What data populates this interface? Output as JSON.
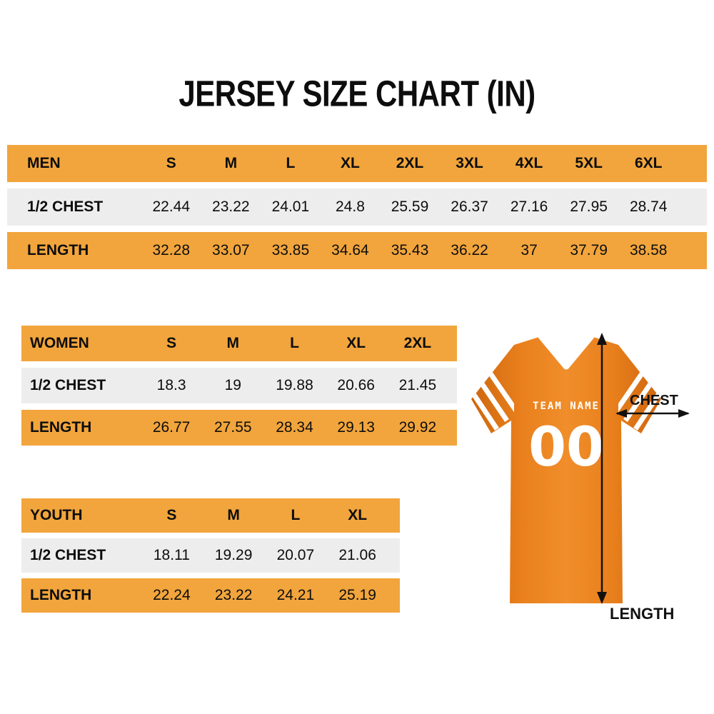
{
  "title": "JERSEY SIZE CHART (IN)",
  "colors": {
    "header_row": "#F2A53C",
    "alt_row": "#EDEDED",
    "jersey": "#E8831F",
    "text": "#0D0D0D"
  },
  "tables": {
    "men": {
      "header": [
        "MEN",
        "S",
        "M",
        "L",
        "XL",
        "2XL",
        "3XL",
        "4XL",
        "5XL",
        "6XL"
      ],
      "rows": [
        {
          "label": "1/2 CHEST",
          "values": [
            "22.44",
            "23.22",
            "24.01",
            "24.8",
            "25.59",
            "26.37",
            "27.16",
            "27.95",
            "28.74"
          ]
        },
        {
          "label": "LENGTH",
          "values": [
            "32.28",
            "33.07",
            "33.85",
            "34.64",
            "35.43",
            "36.22",
            "37",
            "37.79",
            "38.58"
          ]
        }
      ]
    },
    "women": {
      "header": [
        "WOMEN",
        "S",
        "M",
        "L",
        "XL",
        "2XL"
      ],
      "rows": [
        {
          "label": "1/2 CHEST",
          "values": [
            "18.3",
            "19",
            "19.88",
            "20.66",
            "21.45"
          ]
        },
        {
          "label": "LENGTH",
          "values": [
            "26.77",
            "27.55",
            "28.34",
            "29.13",
            "29.92"
          ]
        }
      ]
    },
    "youth": {
      "header": [
        "YOUTH",
        "S",
        "M",
        "L",
        "XL"
      ],
      "rows": [
        {
          "label": "1/2 CHEST",
          "values": [
            "18.11",
            "19.29",
            "20.07",
            "21.06"
          ]
        },
        {
          "label": "LENGTH",
          "values": [
            "22.24",
            "23.22",
            "24.21",
            "25.19"
          ]
        }
      ]
    }
  },
  "jersey": {
    "team_name": "TEAM NAME",
    "number": "00",
    "chest_label": "CHEST",
    "length_label": "LENGTH"
  },
  "chart_data": [
    {
      "type": "table",
      "title": "MEN",
      "unit": "in",
      "columns": [
        "S",
        "M",
        "L",
        "XL",
        "2XL",
        "3XL",
        "4XL",
        "5XL",
        "6XL"
      ],
      "rows": [
        {
          "label": "1/2 CHEST",
          "values": [
            22.44,
            23.22,
            24.01,
            24.8,
            25.59,
            26.37,
            27.16,
            27.95,
            28.74
          ]
        },
        {
          "label": "LENGTH",
          "values": [
            32.28,
            33.07,
            33.85,
            34.64,
            35.43,
            36.22,
            37,
            37.79,
            38.58
          ]
        }
      ]
    },
    {
      "type": "table",
      "title": "WOMEN",
      "unit": "in",
      "columns": [
        "S",
        "M",
        "L",
        "XL",
        "2XL"
      ],
      "rows": [
        {
          "label": "1/2 CHEST",
          "values": [
            18.3,
            19,
            19.88,
            20.66,
            21.45
          ]
        },
        {
          "label": "LENGTH",
          "values": [
            26.77,
            27.55,
            28.34,
            29.13,
            29.92
          ]
        }
      ]
    },
    {
      "type": "table",
      "title": "YOUTH",
      "unit": "in",
      "columns": [
        "S",
        "M",
        "L",
        "XL"
      ],
      "rows": [
        {
          "label": "1/2 CHEST",
          "values": [
            18.11,
            19.29,
            20.07,
            21.06
          ]
        },
        {
          "label": "LENGTH",
          "values": [
            22.24,
            23.22,
            24.21,
            25.19
          ]
        }
      ]
    }
  ]
}
